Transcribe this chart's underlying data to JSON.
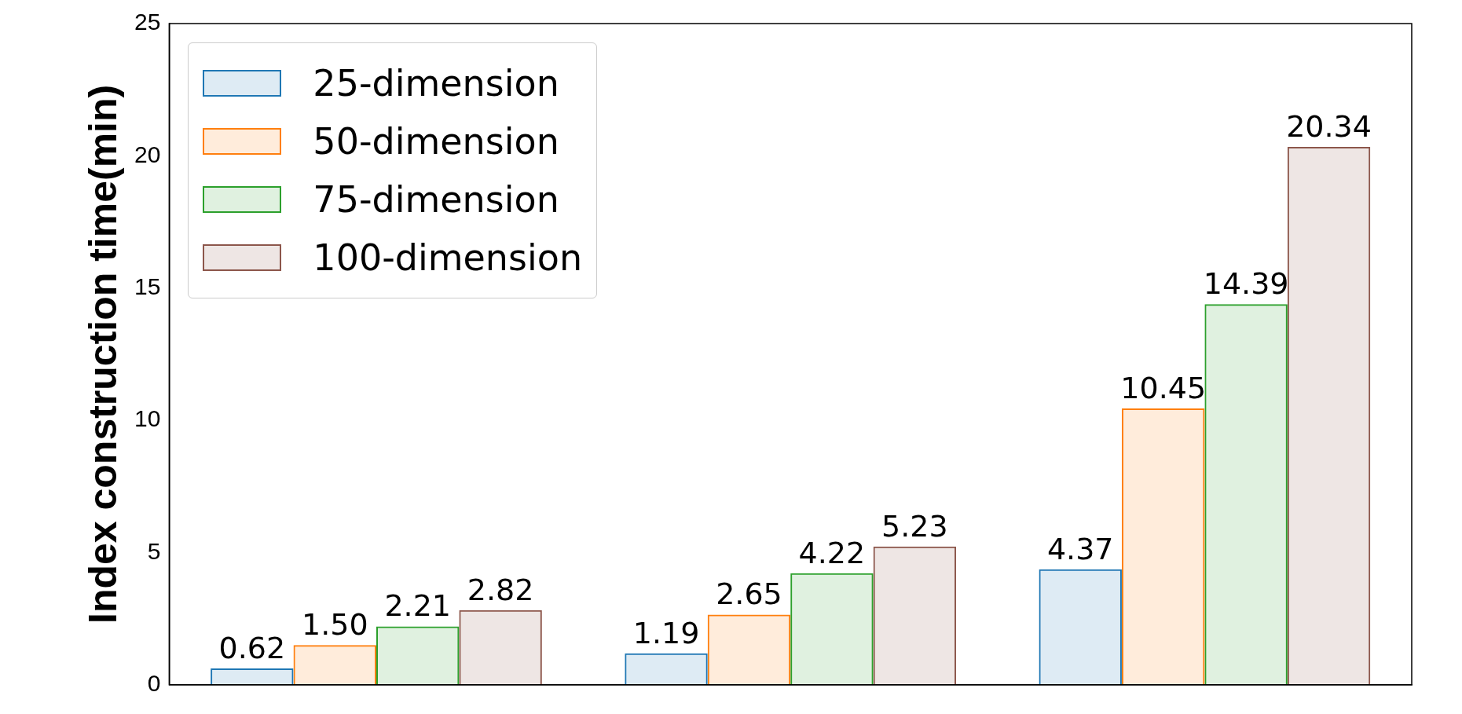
{
  "chart_data": {
    "type": "bar",
    "ylabel": "Index construction time(min)",
    "categories": [
      null,
      null,
      null
    ],
    "series": [
      {
        "name": "25-dimension",
        "color": "#1f77b4",
        "values": [
          0.62,
          1.19,
          4.37
        ],
        "value_labels": [
          "0.62",
          "1.19",
          "4.37"
        ]
      },
      {
        "name": "50-dimension",
        "color": "#ff7f0e",
        "values": [
          1.5,
          2.65,
          10.45
        ],
        "value_labels": [
          "1.50",
          "2.65",
          "10.45"
        ]
      },
      {
        "name": "75-dimension",
        "color": "#2ca02c",
        "values": [
          2.21,
          4.22,
          14.39
        ],
        "value_labels": [
          "2.21",
          "4.22",
          "14.39"
        ]
      },
      {
        "name": "100-dimension",
        "color": "#8c564b",
        "values": [
          2.82,
          5.23,
          20.34
        ],
        "value_labels": [
          "2.82",
          "5.23",
          "20.34"
        ]
      }
    ],
    "ylim": [
      0,
      25
    ],
    "yticks": [
      0,
      5,
      10,
      15,
      20,
      25
    ],
    "legend": "top left",
    "grid": false
  }
}
